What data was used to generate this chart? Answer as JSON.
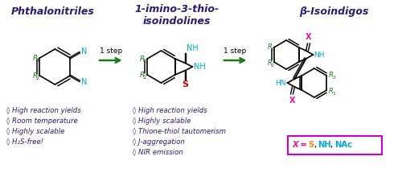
{
  "title1": "Phthalonitriles",
  "title2": "1-imino-3-thio-\nisoindolines",
  "title3": "β-Isoindigos",
  "step_label": "1 step",
  "bullet1": [
    "◊ High reaction yields",
    "◊ Room temperature",
    "◊ Highly scalable",
    "◊ H₂S-free!"
  ],
  "bullet2": [
    "◊ High reaction yields",
    "◊ Highly scalable",
    "◊ Thione-thiol tautomerism",
    "◊ J-aggregation",
    "◊ NIR emission"
  ],
  "bg_color": "#ffffff",
  "title_color": "#2e1a6e",
  "bullet_color": "#2e1a6e",
  "arrow_color": "#1a7a1a",
  "R_color": "#1a7a1a",
  "N_color": "#00aacc",
  "S_color": "#cc0000",
  "NH_color": "#00aacc",
  "X_color": "#ee1199",
  "S_leg_color": "#ff8800",
  "NHNAc_leg_color": "#00aacc",
  "legend_box_color": "#cc00cc",
  "step_fontsize": 6.5,
  "title_fontsize": 9,
  "body_fontsize": 6.2,
  "struct_fontsize": 7.0
}
